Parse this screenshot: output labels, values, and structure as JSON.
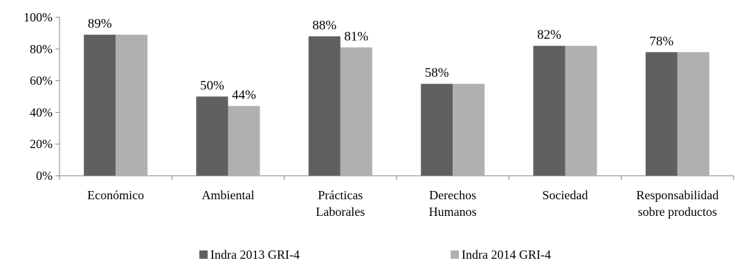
{
  "chart_data": {
    "type": "bar",
    "categories": [
      [
        "Económico"
      ],
      [
        "Ambiental"
      ],
      [
        "Prácticas",
        "Laborales"
      ],
      [
        "Derechos",
        "Humanos"
      ],
      [
        "Sociedad"
      ],
      [
        "Responsabilidad",
        "sobre productos"
      ]
    ],
    "series": [
      {
        "name": "Indra 2013 GRI-4",
        "color": "#606060",
        "values": [
          89,
          50,
          88,
          58,
          82,
          78
        ]
      },
      {
        "name": "Indra 2014 GRI-4",
        "color": "#b0b0b0",
        "values": [
          89,
          44,
          81,
          58,
          82,
          78
        ]
      }
    ],
    "data_labels": [
      {
        "category": 0,
        "series": 0,
        "text": "89%"
      },
      {
        "category": 1,
        "series": 0,
        "text": "50%"
      },
      {
        "category": 1,
        "series": 1,
        "text": "44%"
      },
      {
        "category": 2,
        "series": 0,
        "text": "88%"
      },
      {
        "category": 2,
        "series": 1,
        "text": "81%"
      },
      {
        "category": 3,
        "series": 0,
        "text": "58%"
      },
      {
        "category": 4,
        "series": 0,
        "text": "82%"
      },
      {
        "category": 5,
        "series": 0,
        "text": "78%"
      }
    ],
    "y_ticks": [
      "0%",
      "20%",
      "40%",
      "60%",
      "80%",
      "100%"
    ],
    "ylim": [
      0,
      100
    ],
    "grid": false,
    "legend_position": "bottom"
  }
}
